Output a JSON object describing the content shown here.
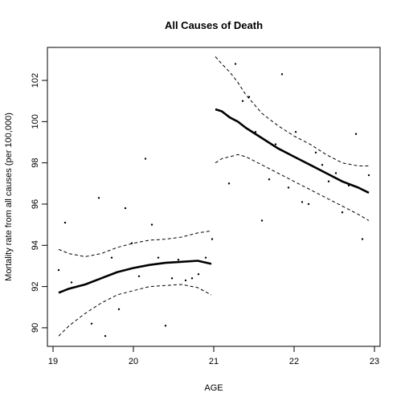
{
  "chart_data": {
    "type": "scatter",
    "title": "All Causes of Death",
    "xlabel": "AGE",
    "ylabel": "Mortality rate from all causes (per 100,000)",
    "xlim": [
      18.93,
      23.07
    ],
    "ylim": [
      89.1,
      103.6
    ],
    "xticks": [
      19,
      20,
      21,
      22,
      23
    ],
    "xtick_labels": [
      "19",
      "20",
      "21",
      "22",
      "23"
    ],
    "yticks": [
      90,
      92,
      94,
      96,
      98,
      100,
      102
    ],
    "ytick_labels": [
      "90",
      "92",
      "94",
      "96",
      "98",
      "100",
      "102"
    ],
    "grid": false,
    "series": [
      {
        "kind": "points",
        "x": [
          19.07,
          19.15,
          19.23,
          19.48,
          19.57,
          19.65,
          19.73,
          19.82,
          19.9,
          19.98,
          20.07,
          20.15,
          20.23,
          20.31,
          20.4,
          20.48,
          20.56,
          20.65,
          20.73,
          20.81,
          20.9,
          20.98,
          21.19,
          21.27,
          21.36,
          21.44,
          21.52,
          21.6,
          21.69,
          21.77,
          21.85,
          21.93,
          22.02,
          22.1,
          22.18,
          22.27,
          22.35,
          22.43,
          22.52,
          22.6,
          22.68,
          22.77,
          22.85,
          22.93
        ],
        "y": [
          92.8,
          95.1,
          92.2,
          90.2,
          96.3,
          89.6,
          93.4,
          90.9,
          95.8,
          94.1,
          92.5,
          98.2,
          95.0,
          93.4,
          90.1,
          92.4,
          93.3,
          92.3,
          92.4,
          92.6,
          93.4,
          94.3,
          97.0,
          102.8,
          101.0,
          101.2,
          99.5,
          95.2,
          97.2,
          98.9,
          102.3,
          96.8,
          99.5,
          96.1,
          96.0,
          98.5,
          97.9,
          97.1,
          97.5,
          95.6,
          96.9,
          99.4,
          94.3,
          97.4
        ]
      },
      {
        "kind": "fit",
        "segment": "below 21",
        "x": [
          19.07,
          19.2,
          19.4,
          19.6,
          19.8,
          20.0,
          20.2,
          20.4,
          20.6,
          20.8,
          20.97
        ],
        "y": [
          91.7,
          91.9,
          92.1,
          92.4,
          92.7,
          92.9,
          93.05,
          93.15,
          93.2,
          93.25,
          93.1
        ]
      },
      {
        "kind": "upper-band",
        "segment": "below 21",
        "x": [
          19.07,
          19.2,
          19.4,
          19.6,
          19.8,
          20.0,
          20.2,
          20.4,
          20.6,
          20.8,
          20.97
        ],
        "y": [
          93.8,
          93.6,
          93.45,
          93.6,
          93.9,
          94.1,
          94.25,
          94.3,
          94.4,
          94.6,
          94.7
        ]
      },
      {
        "kind": "lower-band",
        "segment": "below 21",
        "x": [
          19.07,
          19.2,
          19.4,
          19.6,
          19.8,
          20.0,
          20.2,
          20.4,
          20.6,
          20.8,
          20.97
        ],
        "y": [
          89.6,
          90.1,
          90.7,
          91.2,
          91.6,
          91.8,
          92.0,
          92.05,
          92.1,
          91.95,
          91.6
        ]
      },
      {
        "kind": "fit",
        "segment": "21 and above",
        "x": [
          21.02,
          21.1,
          21.2,
          21.3,
          21.4,
          21.6,
          21.8,
          22.0,
          22.2,
          22.4,
          22.6,
          22.8,
          22.93
        ],
        "y": [
          100.6,
          100.5,
          100.2,
          100.0,
          99.7,
          99.2,
          98.7,
          98.3,
          97.9,
          97.5,
          97.1,
          96.8,
          96.55
        ]
      },
      {
        "kind": "upper-band",
        "segment": "21 and above",
        "x": [
          21.02,
          21.1,
          21.2,
          21.3,
          21.4,
          21.6,
          21.8,
          22.0,
          22.2,
          22.4,
          22.6,
          22.8,
          22.93
        ],
        "y": [
          103.15,
          102.8,
          102.4,
          101.9,
          101.3,
          100.4,
          99.8,
          99.3,
          98.9,
          98.4,
          98.0,
          97.85,
          97.85
        ]
      },
      {
        "kind": "lower-band",
        "segment": "21 and above",
        "x": [
          21.02,
          21.1,
          21.2,
          21.3,
          21.4,
          21.6,
          21.8,
          22.0,
          22.2,
          22.4,
          22.6,
          22.8,
          22.93
        ],
        "y": [
          98.0,
          98.2,
          98.3,
          98.4,
          98.3,
          97.9,
          97.5,
          97.1,
          96.7,
          96.3,
          95.9,
          95.5,
          95.2
        ]
      }
    ]
  }
}
